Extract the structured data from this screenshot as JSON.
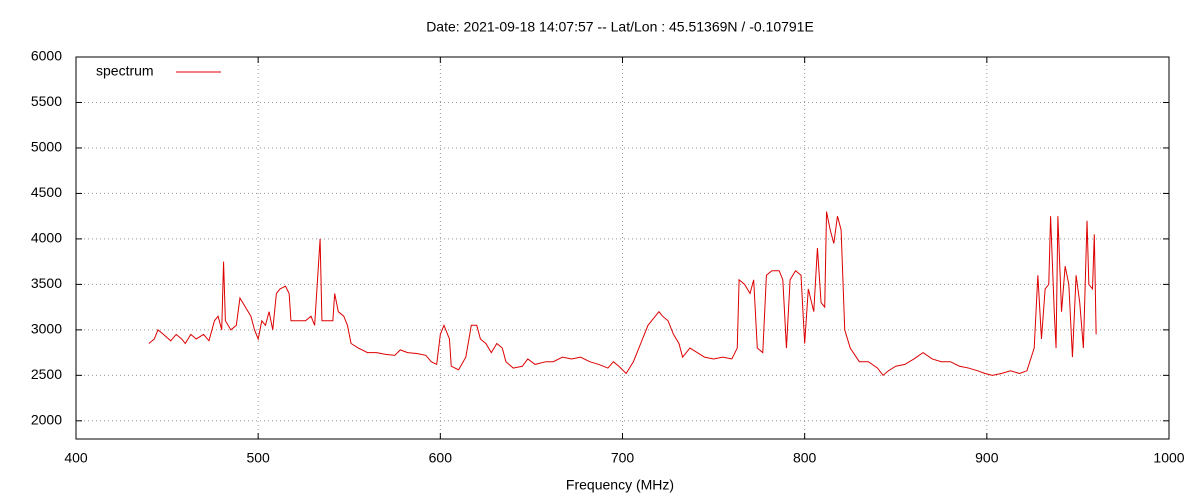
{
  "chart_data": {
    "type": "line",
    "title": "Date: 2021-09-18 14:07:57  --  Lat/Lon : 45.51369N / -0.10791E",
    "x_label": "Frequency (MHz)",
    "xlim": [
      400,
      1000
    ],
    "xticks": [
      400,
      500,
      600,
      700,
      800,
      900,
      1000
    ],
    "ylim": [
      1800,
      6000
    ],
    "yticks": [
      2000,
      2500,
      3000,
      3500,
      4000,
      4500,
      5000,
      5500,
      6000
    ],
    "grid": true,
    "legend": "top left",
    "x": [
      440,
      443,
      445,
      448,
      452,
      455,
      458,
      460,
      463,
      466,
      470,
      473,
      476,
      478,
      480,
      481,
      482,
      485,
      488,
      490,
      493,
      496,
      498,
      500,
      502,
      504,
      506,
      508,
      510,
      512,
      515,
      517,
      518,
      522,
      526,
      529,
      531,
      534,
      535,
      538,
      541,
      542,
      544,
      547,
      549,
      551,
      555,
      560,
      565,
      570,
      575,
      578,
      582,
      587,
      592,
      595,
      598,
      600,
      602,
      605,
      606,
      610,
      614,
      617,
      620,
      622,
      625,
      628,
      631,
      634,
      636,
      640,
      645,
      648,
      652,
      658,
      662,
      667,
      672,
      677,
      682,
      687,
      692,
      695,
      698,
      702,
      706,
      710,
      714,
      718,
      720,
      722,
      725,
      728,
      731,
      733,
      737,
      741,
      745,
      750,
      755,
      760,
      763,
      764,
      767,
      770,
      772,
      774,
      777,
      779,
      782,
      786,
      788,
      790,
      792,
      795,
      798,
      800,
      802,
      805,
      807,
      809,
      811,
      812,
      814,
      816,
      818,
      820,
      822,
      825,
      830,
      835,
      840,
      843,
      846,
      850,
      855,
      860,
      865,
      870,
      875,
      880,
      885,
      890,
      895,
      899,
      903,
      908,
      913,
      918,
      922,
      926,
      928,
      930,
      932,
      934,
      935,
      937,
      938,
      939,
      941,
      943,
      945,
      947,
      949,
      951,
      953,
      955,
      956,
      958,
      959,
      960
    ],
    "series": [
      {
        "name": "spectrum",
        "color": "#dd0000",
        "values": [
          2850,
          2900,
          3000,
          2950,
          2880,
          2950,
          2900,
          2850,
          2950,
          2900,
          2950,
          2880,
          3100,
          3150,
          3000,
          3750,
          3100,
          3000,
          3050,
          3350,
          3250,
          3150,
          3000,
          2900,
          3100,
          3050,
          3200,
          3000,
          3400,
          3450,
          3480,
          3400,
          3100,
          3100,
          3100,
          3150,
          3050,
          4000,
          3100,
          3100,
          3100,
          3400,
          3200,
          3150,
          3050,
          2850,
          2800,
          2750,
          2750,
          2730,
          2720,
          2780,
          2750,
          2740,
          2720,
          2650,
          2620,
          2950,
          3050,
          2900,
          2600,
          2560,
          2700,
          3050,
          3050,
          2900,
          2850,
          2750,
          2850,
          2800,
          2650,
          2580,
          2600,
          2680,
          2620,
          2650,
          2650,
          2700,
          2680,
          2700,
          2650,
          2620,
          2580,
          2650,
          2600,
          2520,
          2650,
          2850,
          3050,
          3150,
          3200,
          3150,
          3100,
          2950,
          2850,
          2700,
          2800,
          2750,
          2700,
          2680,
          2700,
          2680,
          2800,
          3550,
          3500,
          3400,
          3550,
          2800,
          2750,
          3600,
          3650,
          3650,
          3550,
          2800,
          3550,
          3650,
          3600,
          2850,
          3450,
          3200,
          3900,
          3300,
          3250,
          4300,
          4100,
          3950,
          4250,
          4100,
          3000,
          2800,
          2650,
          2650,
          2580,
          2500,
          2550,
          2600,
          2620,
          2680,
          2750,
          2680,
          2650,
          2650,
          2600,
          2580,
          2550,
          2520,
          2500,
          2520,
          2550,
          2520,
          2550,
          2800,
          3600,
          2900,
          3450,
          3500,
          4250,
          3200,
          2800,
          4250,
          3200,
          3700,
          3500,
          2700,
          3600,
          3300,
          2800,
          4200,
          3500,
          3450,
          4050,
          2950
        ]
      }
    ]
  }
}
